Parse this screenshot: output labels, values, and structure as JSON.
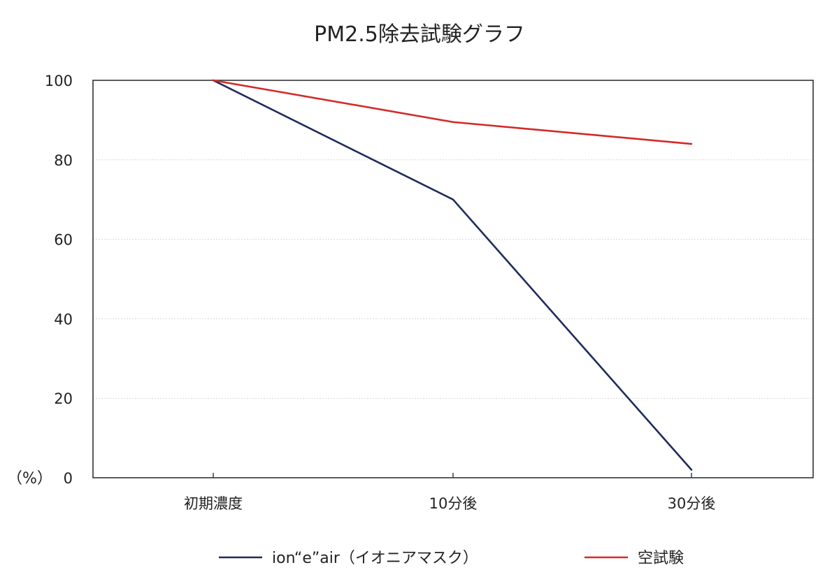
{
  "chart_data": {
    "type": "line",
    "title": "PM2.5除去試験グラフ",
    "xlabel": "",
    "ylabel": "",
    "y_unit_label": "（%）",
    "categories": [
      "初期濃度",
      "10分後",
      "30分後"
    ],
    "ylim": [
      0,
      100
    ],
    "yticks": [
      0,
      20,
      40,
      60,
      80,
      100
    ],
    "grid": true,
    "legend_position": "bottom",
    "series": [
      {
        "name": "ion“e”air（イオニアマスク）",
        "color": "#1f2a5a",
        "values": [
          100,
          70,
          2
        ]
      },
      {
        "name": "空試験",
        "color": "#d42a2a",
        "values": [
          100,
          89.5,
          84
        ]
      }
    ]
  }
}
